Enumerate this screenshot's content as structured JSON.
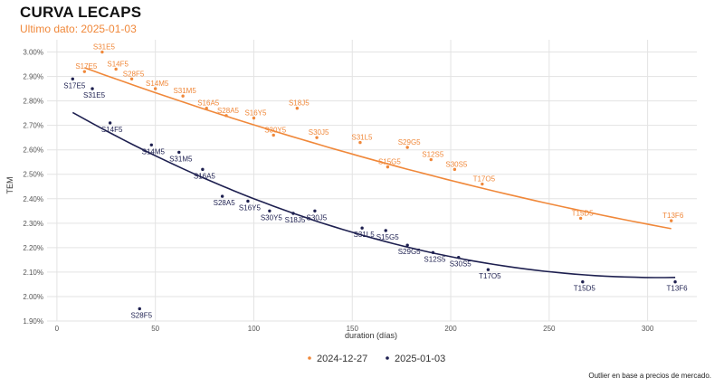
{
  "header": {
    "title": "CURVA LECAPS",
    "subtitle": "Ultimo dato: 2025-01-03"
  },
  "footnote": "Outlier en base a precios de mercado.",
  "colors": {
    "series_prev": "#f0883a",
    "series_curr": "#1e2050",
    "grid": "#e3e3e3"
  },
  "chart_data": {
    "type": "scatter",
    "title": "CURVA LECAPS",
    "subtitle": "Ultimo dato: 2025-01-03",
    "xlabel": "duration (días)",
    "ylabel": "TEM",
    "xlim": [
      -5,
      325
    ],
    "ylim": [
      1.9,
      3.05
    ],
    "xticks": [
      0,
      50,
      100,
      150,
      200,
      250,
      300
    ],
    "yticks": [
      1.9,
      2.0,
      2.1,
      2.2,
      2.3,
      2.4,
      2.5,
      2.6,
      2.7,
      2.8,
      2.9,
      3.0
    ],
    "ytick_labels": [
      "1.90%",
      "2.00%",
      "2.10%",
      "2.20%",
      "2.30%",
      "2.40%",
      "2.50%",
      "2.60%",
      "2.70%",
      "2.80%",
      "2.90%",
      "3.00%"
    ],
    "grid": true,
    "legend": "bottom-center",
    "series": [
      {
        "name": "2024-12-27",
        "color": "#f0883a",
        "points": [
          {
            "label": "S17E5",
            "x": 14,
            "y": 2.92
          },
          {
            "label": "S31E5",
            "x": 23,
            "y": 3.0
          },
          {
            "label": "S14F5",
            "x": 30,
            "y": 2.93
          },
          {
            "label": "S28F5",
            "x": 38,
            "y": 2.89
          },
          {
            "label": "S14M5",
            "x": 50,
            "y": 2.85
          },
          {
            "label": "S31M5",
            "x": 64,
            "y": 2.82
          },
          {
            "label": "S16A5",
            "x": 76,
            "y": 2.77
          },
          {
            "label": "S28A5",
            "x": 86,
            "y": 2.74
          },
          {
            "label": "S16Y5",
            "x": 100,
            "y": 2.73
          },
          {
            "label": "S30Y5",
            "x": 110,
            "y": 2.66
          },
          {
            "label": "S18J5",
            "x": 122,
            "y": 2.77
          },
          {
            "label": "S30J5",
            "x": 132,
            "y": 2.65
          },
          {
            "label": "S31L5",
            "x": 154,
            "y": 2.63
          },
          {
            "label": "S15G5",
            "x": 168,
            "y": 2.53
          },
          {
            "label": "S29G5",
            "x": 178,
            "y": 2.61
          },
          {
            "label": "S12S5",
            "x": 190,
            "y": 2.56
          },
          {
            "label": "S30S5",
            "x": 202,
            "y": 2.52
          },
          {
            "label": "T17O5",
            "x": 216,
            "y": 2.46
          },
          {
            "label": "T15D5",
            "x": 266,
            "y": 2.32
          },
          {
            "label": "T13F6",
            "x": 312,
            "y": 2.31
          }
        ],
        "trend": {
          "type": "quadratic",
          "a": 2.9773,
          "b": -0.0029917,
          "c": 2.4e-06
        }
      },
      {
        "name": "2025-01-03",
        "color": "#1e2050",
        "points": [
          {
            "label": "S17E5",
            "x": 8,
            "y": 2.89
          },
          {
            "label": "S31E5",
            "x": 18,
            "y": 2.85
          },
          {
            "label": "S14F5",
            "x": 27,
            "y": 2.71
          },
          {
            "label": "S28F5",
            "x": 42,
            "y": 1.95
          },
          {
            "label": "S14M5",
            "x": 48,
            "y": 2.62
          },
          {
            "label": "S31M5",
            "x": 62,
            "y": 2.59
          },
          {
            "label": "S16A5",
            "x": 74,
            "y": 2.52
          },
          {
            "label": "S28A5",
            "x": 84,
            "y": 2.41
          },
          {
            "label": "S16Y5",
            "x": 97,
            "y": 2.39
          },
          {
            "label": "S30Y5",
            "x": 108,
            "y": 2.35
          },
          {
            "label": "S18J5",
            "x": 120,
            "y": 2.34
          },
          {
            "label": "S30J5",
            "x": 131,
            "y": 2.35
          },
          {
            "label": "S31L5",
            "x": 155,
            "y": 2.28
          },
          {
            "label": "S15G5",
            "x": 167,
            "y": 2.27
          },
          {
            "label": "S29G5",
            "x": 178,
            "y": 2.21
          },
          {
            "label": "S12S5",
            "x": 191,
            "y": 2.18
          },
          {
            "label": "S30S5",
            "x": 204,
            "y": 2.16
          },
          {
            "label": "T17O5",
            "x": 219,
            "y": 2.11
          },
          {
            "label": "T15D5",
            "x": 267,
            "y": 2.06
          },
          {
            "label": "T13F6",
            "x": 314,
            "y": 2.06
          }
        ],
        "trend": {
          "type": "quadratic",
          "a": 2.7894,
          "b": -0.0046517,
          "c": 7.6e-06
        }
      }
    ]
  }
}
